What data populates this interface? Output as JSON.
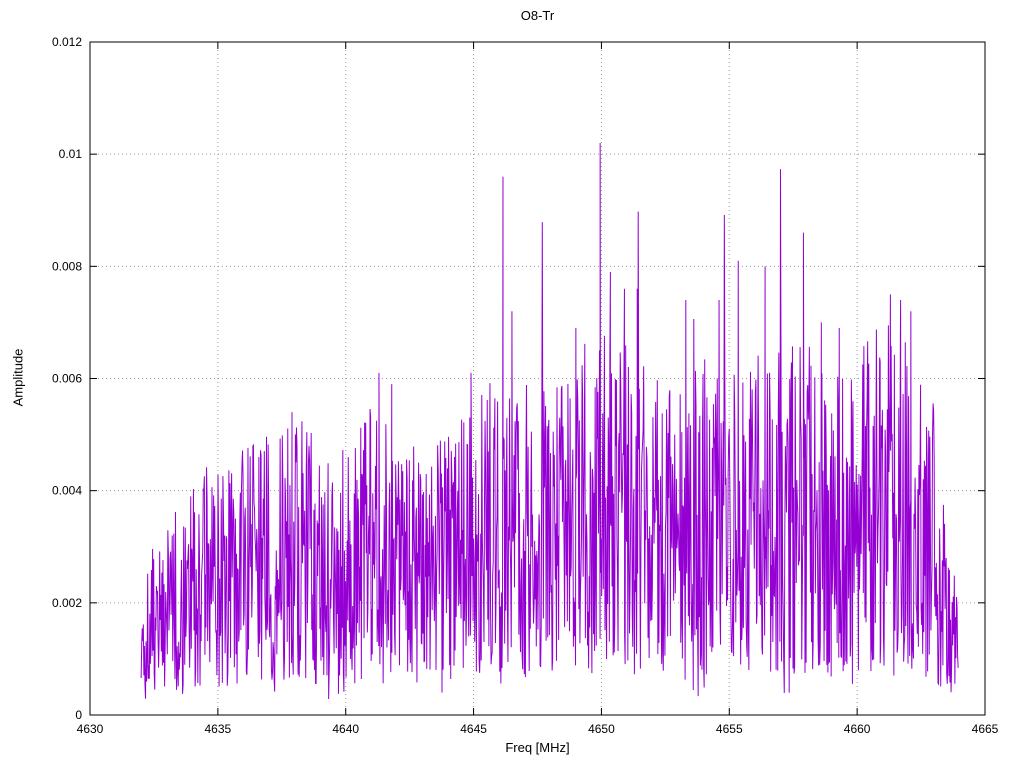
{
  "page": {
    "background": "#ffffff"
  },
  "chart_data": {
    "type": "line",
    "title": "O8-Tr",
    "xlabel": "Freq [MHz]",
    "ylabel": "Amplitude",
    "xlim": [
      4630,
      4665
    ],
    "ylim": [
      0,
      0.012
    ],
    "x_ticks": [
      4630,
      4635,
      4640,
      4645,
      4650,
      4655,
      4660,
      4665
    ],
    "x_tick_labels": [
      "4630",
      "4635",
      "4640",
      "4645",
      "4650",
      "4655",
      "4660",
      "4665"
    ],
    "y_ticks": [
      0,
      0.002,
      0.004,
      0.006,
      0.008,
      0.01,
      0.012
    ],
    "y_tick_labels": [
      "0",
      "0.002",
      "0.004",
      "0.006",
      "0.008",
      "0.01",
      "0.012"
    ],
    "grid": true,
    "grid_style": "dotted",
    "grid_color": "#9a9a9a",
    "border_color": "#000000",
    "legend": "none",
    "series": [
      {
        "name": "O8-Tr",
        "color": "#9400d3",
        "style": "noisy-spectrum",
        "x_start": 4632.0,
        "x_end": 4663.95,
        "n_points": 1500,
        "seed": 1337,
        "noise_floor": 0.0003,
        "envelope": [
          [
            4632,
            0.0017
          ],
          [
            4633,
            0.0021
          ],
          [
            4634,
            0.0026
          ],
          [
            4635,
            0.0028
          ],
          [
            4636,
            0.003
          ],
          [
            4637,
            0.0033
          ],
          [
            4638,
            0.0034
          ],
          [
            4639,
            0.003
          ],
          [
            4640,
            0.0029
          ],
          [
            4641,
            0.0034
          ],
          [
            4642,
            0.0032
          ],
          [
            4643,
            0.003
          ],
          [
            4644,
            0.0031
          ],
          [
            4645,
            0.0034
          ],
          [
            4646,
            0.0039
          ],
          [
            4647,
            0.0037
          ],
          [
            4648,
            0.0038
          ],
          [
            4649,
            0.004
          ],
          [
            4650,
            0.0042
          ],
          [
            4651,
            0.0041
          ],
          [
            4652,
            0.0037
          ],
          [
            4653,
            0.0036
          ],
          [
            4654,
            0.0039
          ],
          [
            4655,
            0.0042
          ],
          [
            4656,
            0.0041
          ],
          [
            4657,
            0.004
          ],
          [
            4658,
            0.0041
          ],
          [
            4659,
            0.0038
          ],
          [
            4660,
            0.004
          ],
          [
            4661,
            0.0043
          ],
          [
            4662,
            0.0043
          ],
          [
            4663,
            0.0034
          ],
          [
            4663.95,
            0.0012
          ]
        ],
        "peaks": [
          [
            4637.9,
            0.0054
          ],
          [
            4641.3,
            0.0061
          ],
          [
            4641.8,
            0.0059
          ],
          [
            4644.9,
            0.0061
          ],
          [
            4646.15,
            0.0096
          ],
          [
            4646.5,
            0.0072
          ],
          [
            4649.0,
            0.0069
          ],
          [
            4649.95,
            0.0102
          ],
          [
            4650.35,
            0.0079
          ],
          [
            4650.9,
            0.0076
          ],
          [
            4651.4,
            0.0076
          ],
          [
            4653.3,
            0.0074
          ],
          [
            4654.6,
            0.0074
          ],
          [
            4655.35,
            0.0081
          ],
          [
            4656.4,
            0.008
          ],
          [
            4657.9,
            0.0086
          ],
          [
            4658.6,
            0.007
          ],
          [
            4659.3,
            0.0069
          ],
          [
            4660.9,
            0.0063
          ],
          [
            4661.3,
            0.0075
          ],
          [
            4661.7,
            0.0074
          ],
          [
            4662.1,
            0.0072
          ]
        ]
      }
    ]
  }
}
